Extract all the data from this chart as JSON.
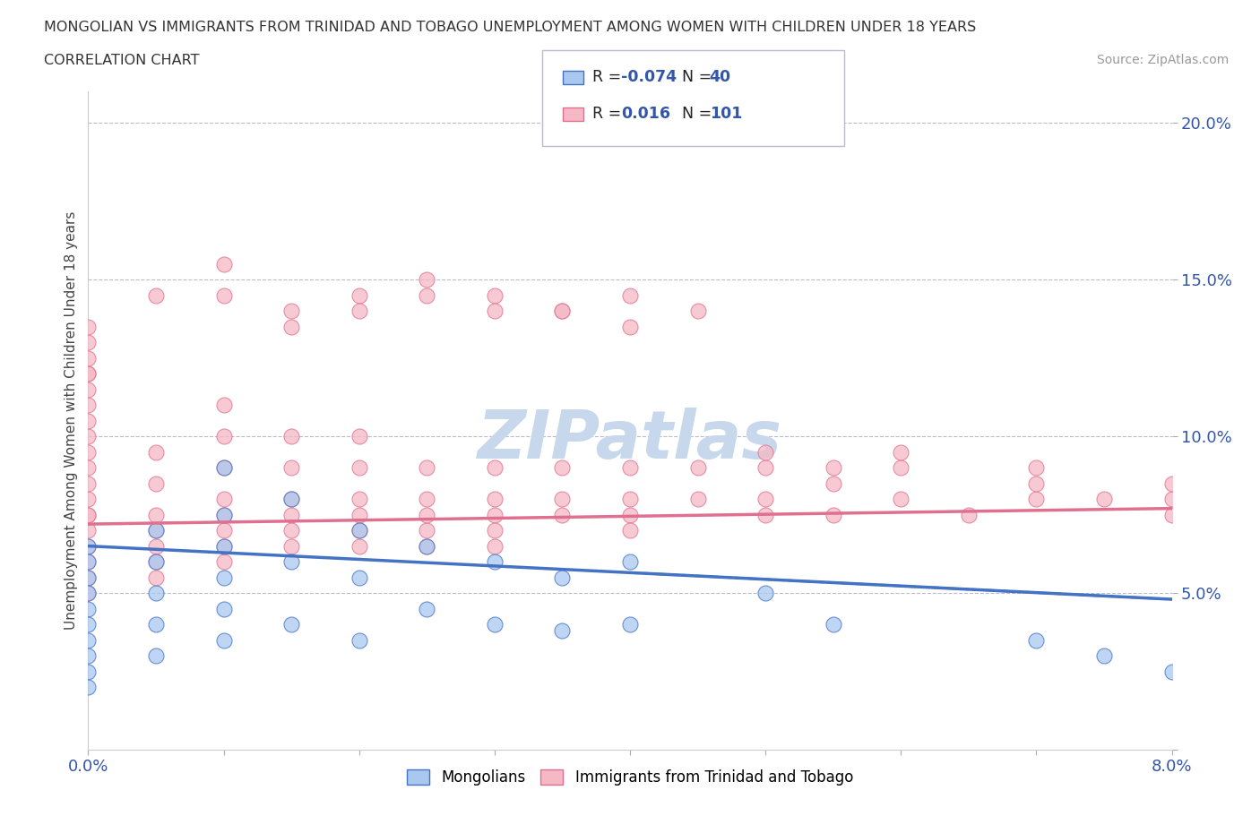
{
  "title_line1": "MONGOLIAN VS IMMIGRANTS FROM TRINIDAD AND TOBAGO UNEMPLOYMENT AMONG WOMEN WITH CHILDREN UNDER 18 YEARS",
  "title_line2": "CORRELATION CHART",
  "source_text": "Source: ZipAtlas.com",
  "ylabel": "Unemployment Among Women with Children Under 18 years",
  "xlim": [
    0.0,
    0.08
  ],
  "ylim": [
    0.0,
    0.21
  ],
  "xticks": [
    0.0,
    0.01,
    0.02,
    0.03,
    0.04,
    0.05,
    0.06,
    0.07,
    0.08
  ],
  "xtick_labels": [
    "0.0%",
    "",
    "",
    "",
    "",
    "",
    "",
    "",
    "8.0%"
  ],
  "yticks": [
    0.0,
    0.05,
    0.1,
    0.15,
    0.2
  ],
  "ytick_labels": [
    "",
    "5.0%",
    "10.0%",
    "15.0%",
    "20.0%"
  ],
  "color_mongolian": "#A8C8F0",
  "color_trinidad": "#F5B8C4",
  "line_color_mongolian": "#4472C4",
  "line_color_trinidad": "#E07090",
  "watermark_color": "#C8D8EC",
  "legend_label_mongolian": "Mongolians",
  "legend_label_trinidad": "Immigrants from Trinidad and Tobago",
  "mongolian_x": [
    0.0,
    0.0,
    0.0,
    0.0,
    0.0,
    0.0,
    0.0,
    0.0,
    0.0,
    0.0,
    0.005,
    0.005,
    0.005,
    0.005,
    0.005,
    0.01,
    0.01,
    0.01,
    0.01,
    0.01,
    0.01,
    0.015,
    0.015,
    0.015,
    0.02,
    0.02,
    0.02,
    0.025,
    0.025,
    0.03,
    0.03,
    0.035,
    0.035,
    0.04,
    0.04,
    0.05,
    0.055,
    0.07,
    0.075,
    0.08
  ],
  "mongolian_y": [
    0.065,
    0.06,
    0.055,
    0.05,
    0.045,
    0.04,
    0.035,
    0.03,
    0.025,
    0.02,
    0.07,
    0.06,
    0.05,
    0.04,
    0.03,
    0.09,
    0.075,
    0.065,
    0.055,
    0.045,
    0.035,
    0.08,
    0.06,
    0.04,
    0.07,
    0.055,
    0.035,
    0.065,
    0.045,
    0.06,
    0.04,
    0.055,
    0.038,
    0.06,
    0.04,
    0.05,
    0.04,
    0.035,
    0.03,
    0.025
  ],
  "trinidad_x": [
    0.0,
    0.0,
    0.0,
    0.0,
    0.0,
    0.0,
    0.0,
    0.0,
    0.0,
    0.0,
    0.0,
    0.0,
    0.0,
    0.0,
    0.0,
    0.005,
    0.005,
    0.005,
    0.005,
    0.005,
    0.005,
    0.005,
    0.01,
    0.01,
    0.01,
    0.01,
    0.01,
    0.01,
    0.01,
    0.01,
    0.015,
    0.015,
    0.015,
    0.015,
    0.015,
    0.015,
    0.02,
    0.02,
    0.02,
    0.02,
    0.02,
    0.02,
    0.025,
    0.025,
    0.025,
    0.025,
    0.025,
    0.03,
    0.03,
    0.03,
    0.03,
    0.03,
    0.035,
    0.035,
    0.035,
    0.04,
    0.04,
    0.04,
    0.04,
    0.045,
    0.045,
    0.05,
    0.05,
    0.05,
    0.055,
    0.055,
    0.06,
    0.06,
    0.065,
    0.07,
    0.07,
    0.075,
    0.08,
    0.08,
    0.08,
    0.005,
    0.01,
    0.015,
    0.02,
    0.025,
    0.03,
    0.035,
    0.04,
    0.045,
    0.05,
    0.055,
    0.0,
    0.0,
    0.0,
    0.0,
    0.0,
    0.01,
    0.015,
    0.02,
    0.025,
    0.03,
    0.035,
    0.04,
    0.06,
    0.07
  ],
  "trinidad_y": [
    0.08,
    0.075,
    0.07,
    0.065,
    0.06,
    0.055,
    0.05,
    0.095,
    0.1,
    0.09,
    0.085,
    0.11,
    0.12,
    0.105,
    0.075,
    0.075,
    0.07,
    0.065,
    0.06,
    0.055,
    0.085,
    0.095,
    0.08,
    0.075,
    0.07,
    0.065,
    0.06,
    0.09,
    0.1,
    0.11,
    0.075,
    0.07,
    0.065,
    0.08,
    0.09,
    0.1,
    0.075,
    0.07,
    0.065,
    0.08,
    0.09,
    0.1,
    0.07,
    0.075,
    0.08,
    0.065,
    0.09,
    0.075,
    0.07,
    0.08,
    0.065,
    0.09,
    0.075,
    0.08,
    0.09,
    0.075,
    0.08,
    0.07,
    0.09,
    0.08,
    0.09,
    0.075,
    0.08,
    0.09,
    0.075,
    0.085,
    0.08,
    0.09,
    0.075,
    0.08,
    0.09,
    0.08,
    0.075,
    0.08,
    0.085,
    0.145,
    0.145,
    0.14,
    0.145,
    0.15,
    0.145,
    0.14,
    0.145,
    0.14,
    0.095,
    0.09,
    0.13,
    0.12,
    0.125,
    0.115,
    0.135,
    0.155,
    0.135,
    0.14,
    0.145,
    0.14,
    0.14,
    0.135,
    0.095,
    0.085
  ]
}
